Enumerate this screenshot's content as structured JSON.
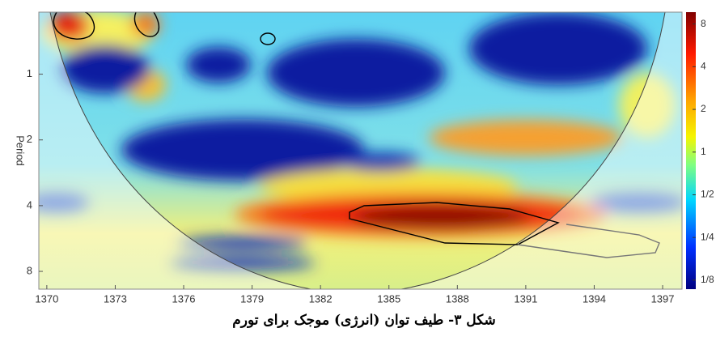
{
  "chart_data": {
    "type": "heatmap",
    "title": "شکل ۳- طیف توان (انرژی) موجک برای تورم",
    "y_label": "Period",
    "xlim": [
      1369.65,
      1397.85
    ],
    "xticks": [
      1370,
      1373,
      1376,
      1379,
      1382,
      1385,
      1388,
      1391,
      1394,
      1397
    ],
    "ylim": [
      0.52,
      9.65
    ],
    "y_log_base": 2,
    "yticks": [
      1,
      2,
      4,
      8
    ],
    "colorbar_lim": [
      0.108,
      9.7
    ],
    "colorbar_ticks": [
      8,
      4,
      2,
      1,
      {
        "value": 0.5,
        "label": "1/2"
      },
      {
        "value": 0.25,
        "label": "1/4"
      },
      {
        "value": 0.125,
        "label": "1/8"
      }
    ]
  }
}
